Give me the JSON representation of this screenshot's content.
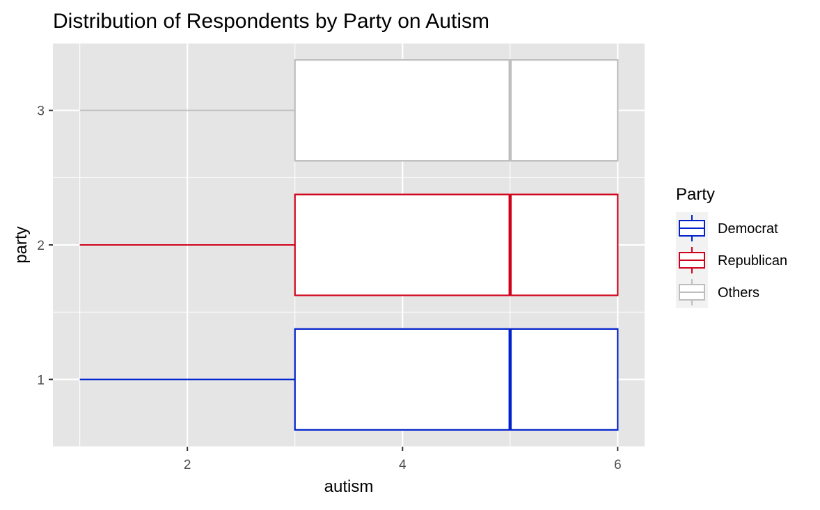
{
  "chart_data": {
    "type": "boxplot",
    "title": "Distribution of Respondents by Party on Autism",
    "xlabel": "autism",
    "ylabel": "party",
    "xlim": [
      0.75,
      6.25
    ],
    "ylim": [
      0.5,
      3.5
    ],
    "x_ticks": [
      2,
      4,
      6
    ],
    "y_ticks": [
      1,
      2,
      3
    ],
    "orientation": "horizontal",
    "grid": true,
    "legend": {
      "title": "Party",
      "position": "right"
    },
    "series": [
      {
        "name": "Democrat",
        "party": 1,
        "color": "#0021CC",
        "min": 1,
        "q1": 3,
        "median": 5,
        "q3": 6,
        "max": 6
      },
      {
        "name": "Republican",
        "party": 2,
        "color": "#D0021B",
        "min": 1,
        "q1": 3,
        "median": 5,
        "q3": 6,
        "max": 6
      },
      {
        "name": "Others",
        "party": 3,
        "color": "#BEBEBE",
        "min": 1,
        "q1": 3,
        "median": 5,
        "q3": 6,
        "max": 6
      }
    ]
  },
  "colors": {
    "panel_background": "#E5E5E5",
    "grid_major": "#FFFFFF",
    "text_title": "#000000",
    "text_ticks": "#4D4D4D"
  }
}
